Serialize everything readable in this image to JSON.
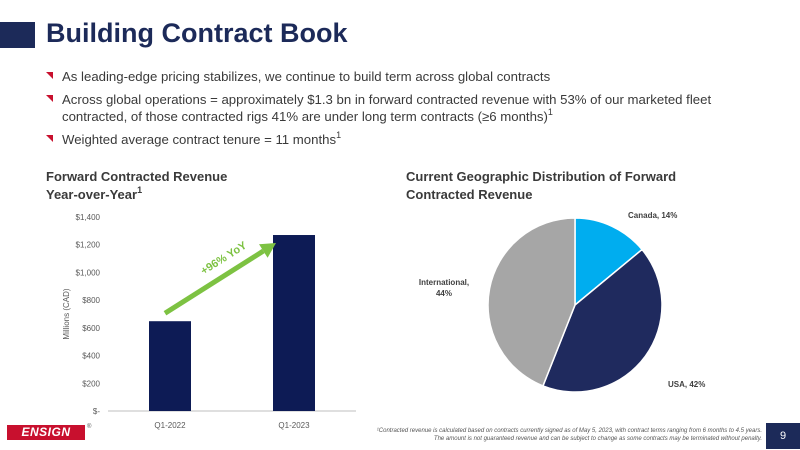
{
  "slide": {
    "title": "Building Contract Book",
    "bullets": [
      {
        "text": "As leading-edge pricing stabilizes, we continue to build term across global contracts",
        "sup": ""
      },
      {
        "text": "Across global operations = approximately $1.3 bn in forward contracted revenue with 53% of our marketed fleet contracted, of those contracted rigs 41% are under long term contracts (≥6 months)",
        "sup": "1"
      },
      {
        "text": "Weighted average contract tenure = 11 months",
        "sup": "1"
      }
    ],
    "footnote_line1": "¹Contracted revenue is calculated based on contracts currently signed as of May 5, 2023, with contract terms ranging from 6 months to 4.5 years.",
    "footnote_line2": "The amount is not guaranteed revenue and can be subject to change as some contracts may be terminated without penalty.",
    "page_number": "9",
    "logo_text": "ENSIGN",
    "colors": {
      "navy": "#1c2a59",
      "accent_red": "#c8102e",
      "arrow_green": "#7dc242"
    }
  },
  "bar_section": {
    "title_line1": "Forward Contracted Revenue",
    "title_line2": "Year-over-Year",
    "title_sup": "1"
  },
  "pie_section": {
    "title_line1": "Current Geographic Distribution of Forward",
    "title_line2": "Contracted Revenue"
  },
  "chart_data": [
    {
      "type": "bar",
      "categories": [
        "Q1-2022",
        "Q1-2023"
      ],
      "values": [
        648,
        1270
      ],
      "ylabel": "Millions (CAD)",
      "ylim": [
        0,
        1400
      ],
      "yticks": [
        0,
        200,
        400,
        600,
        800,
        1000,
        1200,
        1400
      ],
      "ytick_labels": [
        "$-",
        "$200",
        "$400",
        "$600",
        "$800",
        "$1,000",
        "$1,200",
        "$1,400"
      ],
      "annotation": "+96% YoY",
      "color": "#0d1b55",
      "grid": false
    },
    {
      "type": "pie",
      "slices": [
        {
          "label": "Canada, 14%",
          "label_lines": [
            "Canada, 14%"
          ],
          "value": 14,
          "color": "#00adef"
        },
        {
          "label": "USA, 42%",
          "label_lines": [
            "USA, 42%"
          ],
          "value": 42,
          "color": "#1f2a5e"
        },
        {
          "label": "International, 44%",
          "label_lines": [
            "International,",
            "44%"
          ],
          "value": 44,
          "color": "#a6a6a6"
        }
      ]
    }
  ]
}
